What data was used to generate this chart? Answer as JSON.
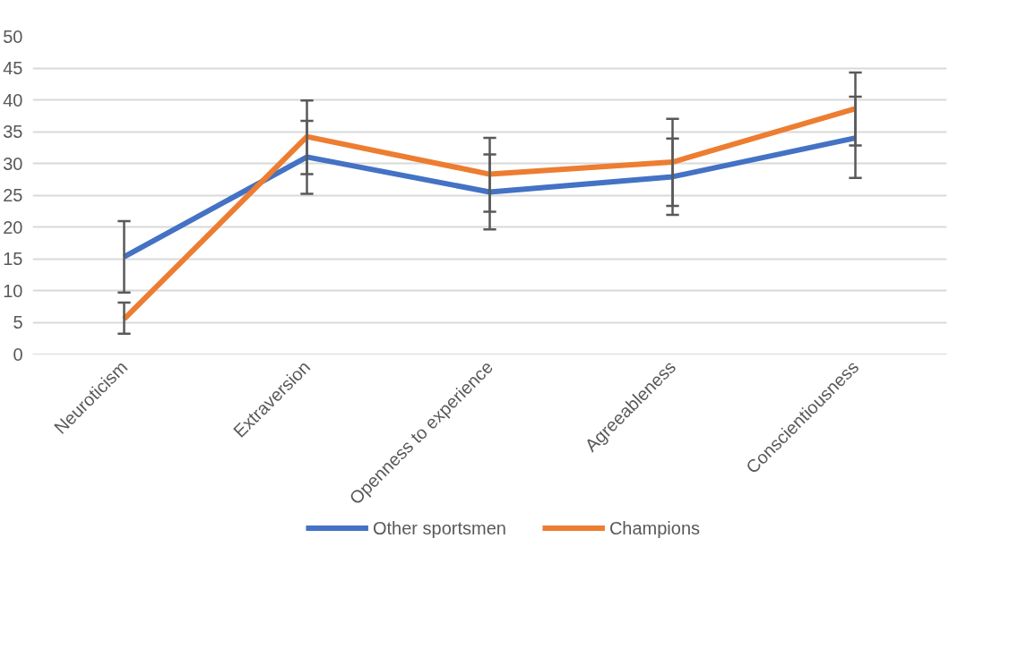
{
  "chart_data": {
    "type": "line",
    "categories": [
      "Neuroticism",
      "Extraversion",
      "Openness to experience",
      "Agreeableness",
      "Conscientiousness"
    ],
    "series": [
      {
        "name": "Other sportsmen",
        "color": "#4472c4",
        "values": [
          15.3,
          31.0,
          25.5,
          27.9,
          34.0
        ],
        "errors": [
          [
            9.7,
            20.9
          ],
          [
            25.2,
            36.7
          ],
          [
            19.6,
            31.4
          ],
          [
            21.9,
            33.9
          ],
          [
            27.7,
            40.5
          ]
        ]
      },
      {
        "name": "Champions",
        "color": "#ed7d31",
        "values": [
          5.5,
          34.2,
          28.3,
          30.2,
          38.6
        ],
        "errors": [
          [
            3.2,
            8.1
          ],
          [
            28.3,
            39.9
          ],
          [
            22.4,
            34.0
          ],
          [
            23.3,
            37.0
          ],
          [
            32.8,
            44.3
          ]
        ]
      }
    ],
    "ylim": [
      0,
      50
    ],
    "yticks": [
      0,
      5,
      10,
      15,
      20,
      25,
      30,
      35,
      40,
      45,
      50
    ],
    "grid": "y",
    "legend": "bottom",
    "marker": "none",
    "line_style": "solid"
  }
}
